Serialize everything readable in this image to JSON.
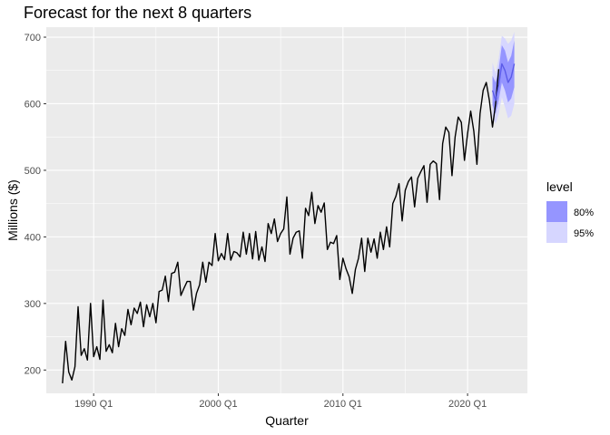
{
  "chart_data": {
    "type": "line",
    "title": "Forecast for the next 8 quarters",
    "xlabel": "Quarter",
    "ylabel": "Millions ($)",
    "x_tick_labels": [
      "1990 Q1",
      "2000 Q1",
      "2010 Q1",
      "2020 Q1"
    ],
    "x_tick_values": [
      1990.0,
      2000.0,
      2010.0,
      2020.0
    ],
    "y_ticks": [
      200,
      300,
      400,
      500,
      600,
      700
    ],
    "xlim": [
      1986.2,
      2024.8
    ],
    "ylim": [
      165,
      715
    ],
    "grid": true,
    "legend": {
      "title": "level",
      "position": "right",
      "entries": [
        {
          "label": "80%",
          "color": "#9595FF"
        },
        {
          "label": "95%",
          "color": "#D6D6FF"
        }
      ]
    },
    "series": [
      {
        "start": 1987.5,
        "step": 0.25,
        "color": "#000000",
        "values": [
          180,
          243,
          197,
          185,
          205,
          295,
          222,
          232,
          215,
          300,
          220,
          235,
          216,
          305,
          228,
          238,
          226,
          270,
          235,
          262,
          252,
          291,
          268,
          293,
          285,
          302,
          265,
          298,
          280,
          300,
          271,
          318,
          320,
          341,
          303,
          345,
          347,
          362,
          312,
          323,
          333,
          333,
          290,
          315,
          328,
          362,
          332,
          362,
          357,
          405,
          364,
          375,
          366,
          405,
          365,
          378,
          376,
          370,
          407,
          374,
          405,
          367,
          408,
          365,
          385,
          363,
          420,
          405,
          427,
          393,
          405,
          412,
          460,
          374,
          398,
          407,
          409,
          368,
          443,
          432,
          467,
          420,
          447,
          437,
          451,
          381,
          392,
          390,
          402,
          336,
          368,
          352,
          340,
          315,
          351,
          368,
          398,
          348,
          398,
          377,
          397,
          368,
          407,
          381,
          415,
          385,
          450,
          461,
          480,
          424,
          470,
          483,
          490,
          445,
          488,
          498,
          507,
          452,
          509,
          514,
          510,
          456,
          540,
          565,
          557,
          492,
          550,
          580,
          572,
          515,
          555,
          589,
          559,
          509,
          585,
          620,
          632,
          605,
          565,
          600,
          652
        ]
      }
    ],
    "forecast": {
      "start": 2022.0,
      "step": 0.25,
      "mean": [
        620,
        605,
        628,
        660,
        650,
        632,
        640,
        660
      ],
      "lo80": [
        598,
        585,
        605,
        632,
        620,
        602,
        608,
        625
      ],
      "hi80": [
        642,
        632,
        652,
        688,
        680,
        662,
        672,
        695
      ],
      "lo95": [
        580,
        570,
        585,
        610,
        595,
        578,
        582,
        600
      ],
      "hi95": [
        662,
        645,
        668,
        702,
        698,
        690,
        695,
        708
      ]
    }
  }
}
